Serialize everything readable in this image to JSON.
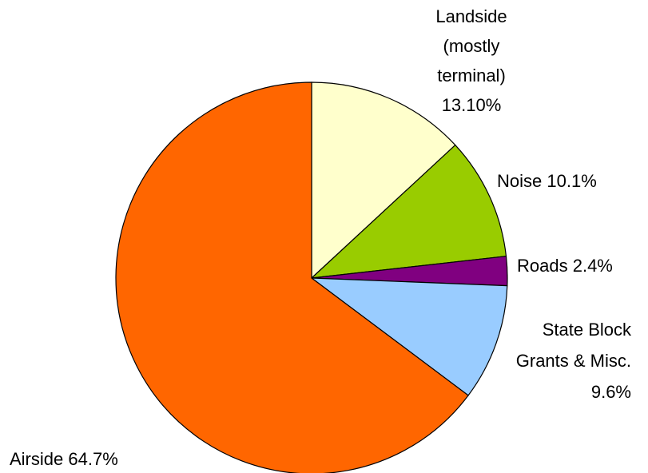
{
  "chart_data": {
    "type": "pie",
    "categories": [
      "Landside (mostly terminal)",
      "Noise",
      "Roads",
      "State Block Grants & Misc.",
      "Airside"
    ],
    "values": [
      13.1,
      10.1,
      2.4,
      9.6,
      64.7
    ],
    "value_labels": [
      "13.10%",
      "10.1%",
      "2.4%",
      "9.6%",
      "64.7%"
    ],
    "colors": [
      "#ffffcc",
      "#99cc00",
      "#800080",
      "#99ccff",
      "#ff6600"
    ]
  }
}
